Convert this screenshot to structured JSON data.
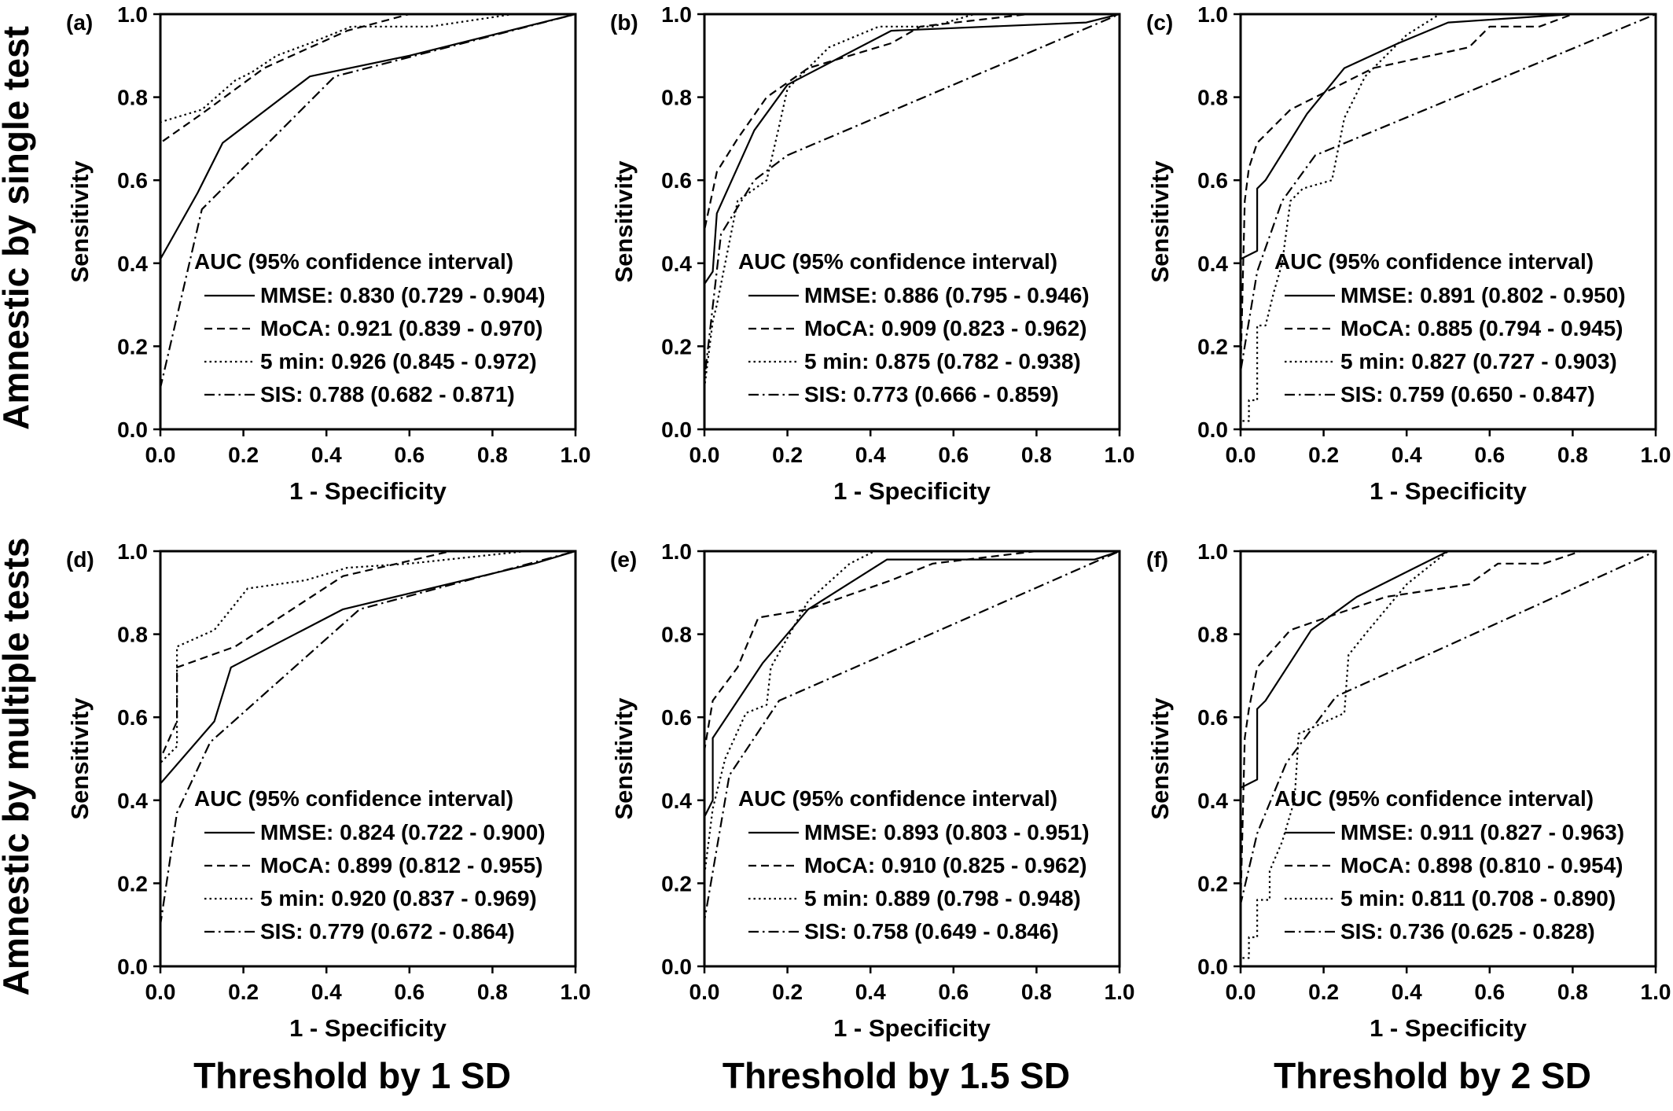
{
  "row_labels": [
    "Amnestic by single test",
    "Amnestic by multiple tests"
  ],
  "column_labels": [
    "Threshold by 1 SD",
    "Threshold by 1.5 SD",
    "Threshold by 2 SD"
  ],
  "line_styles": {
    "MMSE": "solid",
    "MoCA": "dashed",
    "5 min": "dotted",
    "SIS": "dash-dot"
  },
  "chart_data": [
    {
      "type": "line",
      "panel": "(a)",
      "xlabel": "1 - Specificity",
      "ylabel": "Sensitivity",
      "xlim": [
        0,
        1
      ],
      "ylim": [
        0,
        1
      ],
      "x_ticks": [
        "0.0",
        "0.2",
        "0.4",
        "0.6",
        "0.8",
        "1.0"
      ],
      "y_ticks": [
        "0.0",
        "0.2",
        "0.4",
        "0.6",
        "0.8",
        "1.0"
      ],
      "legend_title": "AUC (95% confidence interval)",
      "legend_position": "bottom-right",
      "series": [
        {
          "name": "MMSE",
          "label": "MMSE: 0.830 (0.729 - 0.904)",
          "style": "solid",
          "x": [
            0,
            0,
            0.09,
            0.15,
            0.36,
            0.6,
            0.88,
            1
          ],
          "y": [
            0,
            0.41,
            0.57,
            0.69,
            0.85,
            0.9,
            0.97,
            1
          ]
        },
        {
          "name": "MoCA",
          "label": "MoCA: 0.921 (0.839 - 0.970)",
          "style": "dashed",
          "x": [
            0,
            0,
            0.1,
            0.25,
            0.45,
            0.6,
            1
          ],
          "y": [
            0,
            0.69,
            0.76,
            0.87,
            0.96,
            1,
            1
          ]
        },
        {
          "name": "5 min",
          "label": "5 min: 0.926 (0.845 - 0.972)",
          "style": "dotted",
          "x": [
            0,
            0,
            0.1,
            0.18,
            0.22,
            0.28,
            0.36,
            0.46,
            0.65,
            0.85,
            1
          ],
          "y": [
            0,
            0.74,
            0.77,
            0.84,
            0.86,
            0.9,
            0.93,
            0.97,
            0.97,
            1,
            1
          ]
        },
        {
          "name": "SIS",
          "label": "SIS: 0.788 (0.682 - 0.871)",
          "style": "dash-dot",
          "x": [
            0,
            0,
            0.1,
            0.42,
            1
          ],
          "y": [
            0,
            0.1,
            0.53,
            0.85,
            1
          ]
        }
      ]
    },
    {
      "type": "line",
      "panel": "(b)",
      "xlabel": "1 - Specificity",
      "ylabel": "Sensitivity",
      "xlim": [
        0,
        1
      ],
      "ylim": [
        0,
        1
      ],
      "x_ticks": [
        "0.0",
        "0.2",
        "0.4",
        "0.6",
        "0.8",
        "1.0"
      ],
      "y_ticks": [
        "0.0",
        "0.2",
        "0.4",
        "0.6",
        "0.8",
        "1.0"
      ],
      "legend_title": "AUC (95% confidence interval)",
      "legend_position": "bottom-right",
      "series": [
        {
          "name": "MMSE",
          "label": "MMSE: 0.886 (0.795 - 0.946)",
          "style": "solid",
          "x": [
            0,
            0,
            0.02,
            0.03,
            0.12,
            0.2,
            0.45,
            0.92,
            1
          ],
          "y": [
            0,
            0.35,
            0.38,
            0.52,
            0.72,
            0.83,
            0.96,
            0.98,
            1
          ]
        },
        {
          "name": "MoCA",
          "label": "MoCA: 0.909 (0.823 - 0.962)",
          "style": "dashed",
          "x": [
            0,
            0,
            0.03,
            0.08,
            0.15,
            0.25,
            0.35,
            0.45,
            0.52,
            0.78,
            1
          ],
          "y": [
            0,
            0.48,
            0.62,
            0.7,
            0.8,
            0.87,
            0.9,
            0.93,
            0.97,
            1,
            1
          ]
        },
        {
          "name": "5 min",
          "label": "5 min: 0.875 (0.782 - 0.938)",
          "style": "dotted",
          "x": [
            0,
            0,
            0.02,
            0.03,
            0.05,
            0.08,
            0.15,
            0.18,
            0.2,
            0.3,
            0.42,
            0.55,
            0.65,
            1
          ],
          "y": [
            0,
            0.1,
            0.26,
            0.3,
            0.4,
            0.55,
            0.6,
            0.73,
            0.82,
            0.92,
            0.97,
            0.97,
            1,
            1
          ]
        },
        {
          "name": "SIS",
          "label": "SIS: 0.773 (0.666 - 0.859)",
          "style": "dash-dot",
          "x": [
            0,
            0,
            0.04,
            0.12,
            0.2,
            1
          ],
          "y": [
            0,
            0.12,
            0.47,
            0.6,
            0.66,
            1
          ]
        }
      ]
    },
    {
      "type": "line",
      "panel": "(c)",
      "xlabel": "1 - Specificity",
      "ylabel": "Sensitivity",
      "xlim": [
        0,
        1
      ],
      "ylim": [
        0,
        1
      ],
      "x_ticks": [
        "0.0",
        "0.2",
        "0.4",
        "0.6",
        "0.8",
        "1.0"
      ],
      "y_ticks": [
        "0.0",
        "0.2",
        "0.4",
        "0.6",
        "0.8",
        "1.0"
      ],
      "legend_title": "AUC (95% confidence interval)",
      "legend_position": "bottom-right",
      "series": [
        {
          "name": "MMSE",
          "label": "MMSE: 0.891 (0.802 - 0.950)",
          "style": "solid",
          "x": [
            0,
            0,
            0.04,
            0.04,
            0.06,
            0.16,
            0.25,
            0.38,
            0.5,
            0.8,
            1
          ],
          "y": [
            0,
            0.41,
            0.43,
            0.58,
            0.6,
            0.76,
            0.87,
            0.93,
            0.98,
            1,
            1
          ]
        },
        {
          "name": "MoCA",
          "label": "MoCA: 0.885 (0.794 - 0.945)",
          "style": "dashed",
          "x": [
            0,
            0,
            0.01,
            0.02,
            0.04,
            0.12,
            0.32,
            0.55,
            0.6,
            0.72,
            0.8,
            1
          ],
          "y": [
            0,
            0.14,
            0.55,
            0.63,
            0.69,
            0.77,
            0.87,
            0.92,
            0.97,
            0.97,
            1,
            1
          ]
        },
        {
          "name": "5 min",
          "label": "5 min: 0.827 (0.727 - 0.903)",
          "style": "dotted",
          "x": [
            0,
            0,
            0.02,
            0.02,
            0.04,
            0.04,
            0.06,
            0.08,
            0.1,
            0.12,
            0.15,
            0.22,
            0.25,
            0.3,
            0.4,
            0.48,
            1
          ],
          "y": [
            0,
            0.02,
            0.02,
            0.07,
            0.07,
            0.25,
            0.25,
            0.33,
            0.4,
            0.55,
            0.58,
            0.6,
            0.75,
            0.85,
            0.95,
            1,
            1
          ]
        },
        {
          "name": "SIS",
          "label": "SIS: 0.759 (0.650 - 0.847)",
          "style": "dash-dot",
          "x": [
            0,
            0,
            0.04,
            0.1,
            0.18,
            1
          ],
          "y": [
            0,
            0.14,
            0.38,
            0.55,
            0.66,
            1
          ]
        }
      ]
    },
    {
      "type": "line",
      "panel": "(d)",
      "xlabel": "1 - Specificity",
      "ylabel": "Sensitivity",
      "xlim": [
        0,
        1
      ],
      "ylim": [
        0,
        1
      ],
      "x_ticks": [
        "0.0",
        "0.2",
        "0.4",
        "0.6",
        "0.8",
        "1.0"
      ],
      "y_ticks": [
        "0.0",
        "0.2",
        "0.4",
        "0.6",
        "0.8",
        "1.0"
      ],
      "legend_title": "AUC (95% confidence interval)",
      "legend_position": "bottom-right",
      "series": [
        {
          "name": "MMSE",
          "label": "MMSE: 0.824 (0.722 - 0.900)",
          "style": "solid",
          "x": [
            0,
            0,
            0.13,
            0.17,
            0.44,
            0.9,
            1
          ],
          "y": [
            0,
            0.44,
            0.59,
            0.72,
            0.86,
            0.97,
            1
          ]
        },
        {
          "name": "MoCA",
          "label": "MoCA: 0.899 (0.812 - 0.955)",
          "style": "dashed",
          "x": [
            0,
            0,
            0.04,
            0.04,
            0.18,
            0.44,
            0.7,
            1
          ],
          "y": [
            0,
            0.5,
            0.59,
            0.72,
            0.77,
            0.94,
            1,
            1
          ]
        },
        {
          "name": "5 min",
          "label": "5 min: 0.920 (0.837 - 0.969)",
          "style": "dotted",
          "x": [
            0,
            0,
            0.04,
            0.04,
            0.13,
            0.21,
            0.35,
            0.45,
            0.6,
            0.88,
            1
          ],
          "y": [
            0,
            0.49,
            0.53,
            0.77,
            0.81,
            0.91,
            0.93,
            0.96,
            0.97,
            1,
            1
          ]
        },
        {
          "name": "SIS",
          "label": "SIS: 0.779 (0.672 - 0.864)",
          "style": "dash-dot",
          "x": [
            0,
            0,
            0.04,
            0.12,
            0.48,
            1
          ],
          "y": [
            0,
            0.1,
            0.37,
            0.54,
            0.86,
            1
          ]
        }
      ]
    },
    {
      "type": "line",
      "panel": "(e)",
      "xlabel": "1 - Specificity",
      "ylabel": "Sensitivity",
      "xlim": [
        0,
        1
      ],
      "ylim": [
        0,
        1
      ],
      "x_ticks": [
        "0.0",
        "0.2",
        "0.4",
        "0.6",
        "0.8",
        "1.0"
      ],
      "y_ticks": [
        "0.0",
        "0.2",
        "0.4",
        "0.6",
        "0.8",
        "1.0"
      ],
      "legend_title": "AUC (95% confidence interval)",
      "legend_position": "bottom-right",
      "series": [
        {
          "name": "MMSE",
          "label": "MMSE: 0.893 (0.803 - 0.951)",
          "style": "solid",
          "x": [
            0,
            0,
            0.02,
            0.02,
            0.14,
            0.25,
            0.44,
            0.94,
            1
          ],
          "y": [
            0,
            0.36,
            0.4,
            0.55,
            0.73,
            0.86,
            0.98,
            0.98,
            1
          ]
        },
        {
          "name": "MoCA",
          "label": "MoCA: 0.910 (0.825 - 0.962)",
          "style": "dashed",
          "x": [
            0,
            0,
            0.02,
            0.08,
            0.13,
            0.25,
            0.45,
            0.55,
            0.8,
            1
          ],
          "y": [
            0,
            0.52,
            0.64,
            0.72,
            0.84,
            0.86,
            0.93,
            0.97,
            1,
            1
          ]
        },
        {
          "name": "5 min",
          "label": "5 min: 0.889 (0.798 - 0.948)",
          "style": "dotted",
          "x": [
            0,
            0,
            0.02,
            0.05,
            0.1,
            0.15,
            0.16,
            0.25,
            0.35,
            0.41,
            1
          ],
          "y": [
            0,
            0.22,
            0.38,
            0.5,
            0.61,
            0.63,
            0.72,
            0.88,
            0.97,
            1,
            1
          ]
        },
        {
          "name": "SIS",
          "label": "SIS: 0.758 (0.649 - 0.846)",
          "style": "dash-dot",
          "x": [
            0,
            0,
            0.06,
            0.18,
            1
          ],
          "y": [
            0,
            0.11,
            0.46,
            0.64,
            1
          ]
        }
      ]
    },
    {
      "type": "line",
      "panel": "(f)",
      "xlabel": "1 - Specificity",
      "ylabel": "Sensitivity",
      "xlim": [
        0,
        1
      ],
      "ylim": [
        0,
        1
      ],
      "x_ticks": [
        "0.0",
        "0.2",
        "0.4",
        "0.6",
        "0.8",
        "1.0"
      ],
      "y_ticks": [
        "0.0",
        "0.2",
        "0.4",
        "0.6",
        "0.8",
        "1.0"
      ],
      "legend_title": "AUC (95% confidence interval)",
      "legend_position": "bottom-right",
      "series": [
        {
          "name": "MMSE",
          "label": "MMSE: 0.911 (0.827 - 0.963)",
          "style": "solid",
          "x": [
            0,
            0,
            0.04,
            0.04,
            0.06,
            0.17,
            0.28,
            0.4,
            0.5,
            1
          ],
          "y": [
            0,
            0.43,
            0.45,
            0.62,
            0.64,
            0.81,
            0.89,
            0.95,
            1,
            1
          ]
        },
        {
          "name": "MoCA",
          "label": "MoCA: 0.898 (0.810 - 0.954)",
          "style": "dashed",
          "x": [
            0,
            0,
            0.01,
            0.02,
            0.04,
            0.12,
            0.35,
            0.55,
            0.62,
            0.73,
            0.82,
            1
          ],
          "y": [
            0,
            0.15,
            0.55,
            0.62,
            0.72,
            0.81,
            0.89,
            0.92,
            0.97,
            0.97,
            1,
            1
          ]
        },
        {
          "name": "5 min",
          "label": "5 min: 0.811 (0.708 - 0.890)",
          "style": "dotted",
          "x": [
            0,
            0,
            0.02,
            0.02,
            0.04,
            0.04,
            0.07,
            0.07,
            0.1,
            0.13,
            0.14,
            0.25,
            0.26,
            0.3,
            0.4,
            0.5,
            1
          ],
          "y": [
            0,
            0.02,
            0.02,
            0.07,
            0.07,
            0.16,
            0.16,
            0.23,
            0.3,
            0.4,
            0.56,
            0.61,
            0.75,
            0.8,
            0.92,
            1,
            1
          ]
        },
        {
          "name": "SIS",
          "label": "SIS: 0.736 (0.625 - 0.828)",
          "style": "dash-dot",
          "x": [
            0,
            0,
            0.04,
            0.11,
            0.23,
            1
          ],
          "y": [
            0,
            0.15,
            0.32,
            0.49,
            0.65,
            1
          ]
        }
      ]
    }
  ]
}
